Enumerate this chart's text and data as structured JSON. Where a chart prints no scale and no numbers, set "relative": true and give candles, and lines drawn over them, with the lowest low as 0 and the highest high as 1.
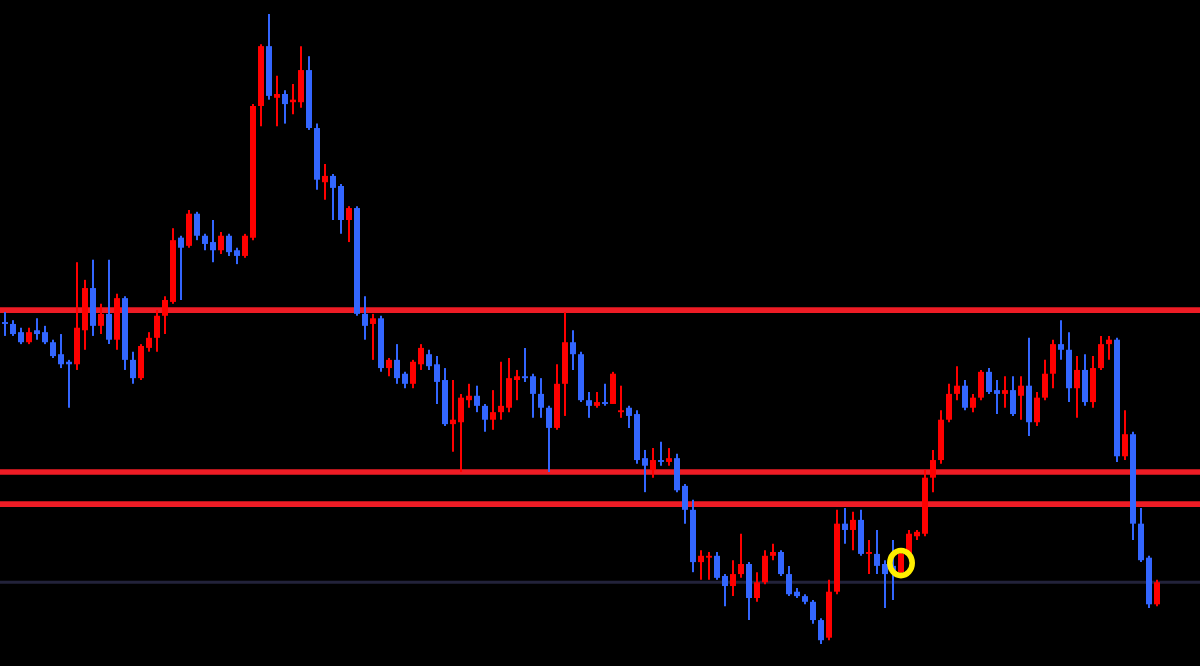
{
  "chart_data": {
    "type": "candlestick",
    "relative": true,
    "categories": [
      null,
      null,
      null,
      null,
      null,
      null,
      null,
      null,
      null,
      null,
      null,
      null,
      null,
      null,
      null,
      null,
      null,
      null,
      null,
      null,
      null,
      null,
      null,
      null,
      null,
      null,
      null,
      null,
      null,
      null,
      null,
      null,
      null,
      null,
      null,
      null,
      null,
      null,
      null,
      null,
      null,
      null,
      null,
      null,
      null,
      null,
      null,
      null,
      null,
      null,
      null,
      null,
      null,
      null,
      null,
      null,
      null,
      null,
      null,
      null,
      null,
      null,
      null,
      null,
      null,
      null,
      null,
      null,
      null,
      null,
      null,
      null,
      null,
      null,
      null,
      null,
      null,
      null,
      null,
      null,
      null,
      null,
      null,
      null,
      null,
      null,
      null,
      null,
      null,
      null,
      null,
      null,
      null,
      null,
      null,
      null,
      null,
      null,
      null,
      null,
      null,
      null,
      null,
      null,
      null,
      null,
      null,
      null,
      null,
      null,
      null,
      null,
      null,
      null,
      null,
      null,
      null,
      null,
      null,
      null,
      null,
      null,
      null,
      null,
      null,
      null,
      null,
      null,
      null,
      null,
      null,
      null,
      null,
      null,
      null,
      null,
      null,
      null,
      null,
      null,
      null,
      null,
      null,
      null,
      null
    ],
    "ohlc": [
      [
        0.511,
        0.527,
        0.489,
        0.508
      ],
      [
        0.508,
        0.514,
        0.489,
        0.492
      ],
      [
        0.495,
        0.502,
        0.476,
        0.479
      ],
      [
        0.479,
        0.502,
        0.476,
        0.495
      ],
      [
        0.498,
        0.517,
        0.483,
        0.492
      ],
      [
        0.495,
        0.505,
        0.476,
        0.479
      ],
      [
        0.479,
        0.483,
        0.454,
        0.457
      ],
      [
        0.46,
        0.492,
        0.438,
        0.444
      ],
      [
        0.448,
        0.451,
        0.375,
        0.444
      ],
      [
        0.444,
        0.606,
        0.435,
        0.502
      ],
      [
        0.498,
        0.578,
        0.467,
        0.565
      ],
      [
        0.565,
        0.61,
        0.489,
        0.505
      ],
      [
        0.505,
        0.54,
        0.492,
        0.524
      ],
      [
        0.524,
        0.61,
        0.476,
        0.483
      ],
      [
        0.483,
        0.556,
        0.467,
        0.549
      ],
      [
        0.549,
        0.552,
        0.435,
        0.451
      ],
      [
        0.451,
        0.464,
        0.413,
        0.422
      ],
      [
        0.422,
        0.476,
        0.419,
        0.473
      ],
      [
        0.47,
        0.495,
        0.464,
        0.486
      ],
      [
        0.486,
        0.53,
        0.464,
        0.521
      ],
      [
        0.521,
        0.552,
        0.492,
        0.546
      ],
      [
        0.543,
        0.66,
        0.54,
        0.641
      ],
      [
        0.645,
        0.648,
        0.546,
        0.629
      ],
      [
        0.632,
        0.689,
        0.629,
        0.683
      ],
      [
        0.683,
        0.686,
        0.641,
        0.648
      ],
      [
        0.648,
        0.651,
        0.625,
        0.635
      ],
      [
        0.638,
        0.673,
        0.606,
        0.625
      ],
      [
        0.625,
        0.654,
        0.619,
        0.648
      ],
      [
        0.648,
        0.651,
        0.616,
        0.622
      ],
      [
        0.625,
        0.629,
        0.603,
        0.616
      ],
      [
        0.616,
        0.651,
        0.613,
        0.648
      ],
      [
        0.645,
        0.857,
        0.641,
        0.854
      ],
      [
        0.854,
        0.952,
        0.822,
        0.949
      ],
      [
        0.949,
        1.0,
        0.864,
        0.87
      ],
      [
        0.867,
        0.902,
        0.822,
        0.873
      ],
      [
        0.873,
        0.879,
        0.826,
        0.857
      ],
      [
        0.86,
        0.889,
        0.841,
        0.864
      ],
      [
        0.86,
        0.949,
        0.851,
        0.911
      ],
      [
        0.911,
        0.933,
        0.816,
        0.819
      ],
      [
        0.819,
        0.826,
        0.721,
        0.737
      ],
      [
        0.733,
        0.762,
        0.705,
        0.743
      ],
      [
        0.743,
        0.746,
        0.673,
        0.724
      ],
      [
        0.727,
        0.73,
        0.651,
        0.673
      ],
      [
        0.673,
        0.695,
        0.638,
        0.692
      ],
      [
        0.692,
        0.695,
        0.521,
        0.524
      ],
      [
        0.524,
        0.552,
        0.483,
        0.505
      ],
      [
        0.508,
        0.524,
        0.451,
        0.517
      ],
      [
        0.517,
        0.521,
        0.432,
        0.438
      ],
      [
        0.438,
        0.454,
        0.425,
        0.451
      ],
      [
        0.451,
        0.476,
        0.413,
        0.422
      ],
      [
        0.429,
        0.432,
        0.406,
        0.413
      ],
      [
        0.413,
        0.451,
        0.406,
        0.448
      ],
      [
        0.444,
        0.476,
        0.435,
        0.47
      ],
      [
        0.46,
        0.467,
        0.435,
        0.441
      ],
      [
        0.444,
        0.457,
        0.381,
        0.416
      ],
      [
        0.419,
        0.438,
        0.346,
        0.349
      ],
      [
        0.349,
        0.419,
        0.305,
        0.356
      ],
      [
        0.352,
        0.397,
        0.273,
        0.391
      ],
      [
        0.387,
        0.413,
        0.375,
        0.394
      ],
      [
        0.394,
        0.41,
        0.368,
        0.378
      ],
      [
        0.378,
        0.381,
        0.337,
        0.356
      ],
      [
        0.356,
        0.403,
        0.34,
        0.368
      ],
      [
        0.368,
        0.448,
        0.356,
        0.378
      ],
      [
        0.375,
        0.454,
        0.368,
        0.422
      ],
      [
        0.419,
        0.435,
        0.387,
        0.425
      ],
      [
        0.425,
        0.47,
        0.416,
        0.422
      ],
      [
        0.425,
        0.429,
        0.359,
        0.397
      ],
      [
        0.397,
        0.422,
        0.359,
        0.375
      ],
      [
        0.375,
        0.378,
        0.273,
        0.343
      ],
      [
        0.343,
        0.444,
        0.34,
        0.413
      ],
      [
        0.413,
        0.527,
        0.362,
        0.479
      ],
      [
        0.479,
        0.498,
        0.435,
        0.46
      ],
      [
        0.46,
        0.464,
        0.384,
        0.387
      ],
      [
        0.387,
        0.4,
        0.359,
        0.378
      ],
      [
        0.378,
        0.4,
        0.375,
        0.384
      ],
      [
        0.384,
        0.413,
        0.378,
        0.381
      ],
      [
        0.381,
        0.432,
        0.381,
        0.429
      ],
      [
        0.368,
        0.41,
        0.359,
        0.371
      ],
      [
        0.375,
        0.378,
        0.343,
        0.362
      ],
      [
        0.365,
        0.371,
        0.286,
        0.292
      ],
      [
        0.295,
        0.308,
        0.241,
        0.283
      ],
      [
        0.276,
        0.311,
        0.264,
        0.292
      ],
      [
        0.292,
        0.321,
        0.283,
        0.289
      ],
      [
        0.289,
        0.311,
        0.283,
        0.295
      ],
      [
        0.295,
        0.302,
        0.241,
        0.244
      ],
      [
        0.251,
        0.254,
        0.191,
        0.213
      ],
      [
        0.213,
        0.229,
        0.114,
        0.13
      ],
      [
        0.13,
        0.149,
        0.102,
        0.14
      ],
      [
        0.137,
        0.146,
        0.102,
        0.14
      ],
      [
        0.14,
        0.146,
        0.102,
        0.105
      ],
      [
        0.108,
        0.111,
        0.06,
        0.092
      ],
      [
        0.092,
        0.133,
        0.076,
        0.111
      ],
      [
        0.111,
        0.175,
        0.105,
        0.127
      ],
      [
        0.127,
        0.13,
        0.038,
        0.073
      ],
      [
        0.073,
        0.114,
        0.067,
        0.098
      ],
      [
        0.098,
        0.149,
        0.095,
        0.14
      ],
      [
        0.14,
        0.159,
        0.133,
        0.146
      ],
      [
        0.146,
        0.149,
        0.108,
        0.111
      ],
      [
        0.111,
        0.124,
        0.076,
        0.079
      ],
      [
        0.083,
        0.089,
        0.073,
        0.076
      ],
      [
        0.076,
        0.079,
        0.063,
        0.067
      ],
      [
        0.067,
        0.07,
        0.032,
        0.038
      ],
      [
        0.038,
        0.041,
        0.0,
        0.006
      ],
      [
        0.01,
        0.102,
        0.006,
        0.083
      ],
      [
        0.083,
        0.213,
        0.079,
        0.191
      ],
      [
        0.191,
        0.216,
        0.159,
        0.181
      ],
      [
        0.181,
        0.21,
        0.149,
        0.197
      ],
      [
        0.197,
        0.213,
        0.14,
        0.143
      ],
      [
        0.143,
        0.165,
        0.111,
        0.146
      ],
      [
        0.143,
        0.181,
        0.111,
        0.124
      ],
      [
        0.127,
        0.133,
        0.057,
        0.111
      ],
      [
        0.124,
        0.165,
        0.07,
        0.114
      ],
      [
        0.114,
        0.149,
        0.105,
        0.143
      ],
      [
        0.143,
        0.181,
        0.14,
        0.175
      ],
      [
        0.171,
        0.181,
        0.165,
        0.178
      ],
      [
        0.175,
        0.276,
        0.171,
        0.264
      ],
      [
        0.264,
        0.308,
        0.241,
        0.292
      ],
      [
        0.292,
        0.371,
        0.286,
        0.356
      ],
      [
        0.356,
        0.413,
        0.352,
        0.397
      ],
      [
        0.397,
        0.441,
        0.387,
        0.41
      ],
      [
        0.41,
        0.419,
        0.371,
        0.375
      ],
      [
        0.375,
        0.397,
        0.368,
        0.391
      ],
      [
        0.391,
        0.435,
        0.387,
        0.432
      ],
      [
        0.432,
        0.438,
        0.397,
        0.4
      ],
      [
        0.403,
        0.419,
        0.365,
        0.397
      ],
      [
        0.397,
        0.425,
        0.375,
        0.403
      ],
      [
        0.403,
        0.425,
        0.362,
        0.365
      ],
      [
        0.394,
        0.425,
        0.356,
        0.41
      ],
      [
        0.41,
        0.486,
        0.33,
        0.352
      ],
      [
        0.352,
        0.4,
        0.346,
        0.391
      ],
      [
        0.391,
        0.451,
        0.387,
        0.429
      ],
      [
        0.429,
        0.483,
        0.406,
        0.476
      ],
      [
        0.476,
        0.514,
        0.451,
        0.467
      ],
      [
        0.467,
        0.495,
        0.384,
        0.406
      ],
      [
        0.406,
        0.457,
        0.359,
        0.435
      ],
      [
        0.435,
        0.46,
        0.378,
        0.384
      ],
      [
        0.384,
        0.457,
        0.375,
        0.438
      ],
      [
        0.438,
        0.489,
        0.435,
        0.476
      ],
      [
        0.476,
        0.489,
        0.451,
        0.483
      ],
      [
        0.483,
        0.486,
        0.289,
        0.298
      ],
      [
        0.298,
        0.371,
        0.292,
        0.333
      ],
      [
        0.333,
        0.337,
        0.165,
        0.191
      ],
      [
        0.191,
        0.216,
        0.13,
        0.133
      ],
      [
        0.137,
        0.14,
        0.057,
        0.063
      ],
      [
        0.063,
        0.102,
        0.06,
        0.098
      ]
    ],
    "colors": [
      "#3366ff",
      "#3366ff",
      "#3366ff",
      "#ff0000",
      "#3366ff",
      "#3366ff",
      "#3366ff",
      "#3366ff",
      "#3366ff",
      "#ff0000",
      "#ff0000",
      "#3366ff",
      "#ff0000",
      "#3366ff",
      "#ff0000",
      "#3366ff",
      "#3366ff",
      "#ff0000",
      "#ff0000",
      "#ff0000",
      "#ff0000",
      "#ff0000",
      "#3366ff",
      "#ff0000",
      "#3366ff",
      "#3366ff",
      "#3366ff",
      "#ff0000",
      "#3366ff",
      "#3366ff",
      "#ff0000",
      "#ff0000",
      "#ff0000",
      "#3366ff",
      "#ff0000",
      "#3366ff",
      "#ff0000",
      "#ff0000",
      "#3366ff",
      "#3366ff",
      "#ff0000",
      "#3366ff",
      "#3366ff",
      "#ff0000",
      "#3366ff",
      "#3366ff",
      "#ff0000",
      "#3366ff",
      "#ff0000",
      "#3366ff",
      "#3366ff",
      "#ff0000",
      "#ff0000",
      "#3366ff",
      "#3366ff",
      "#3366ff",
      "#ff0000",
      "#ff0000",
      "#ff0000",
      "#3366ff",
      "#3366ff",
      "#ff0000",
      "#ff0000",
      "#ff0000",
      "#ff0000",
      "#3366ff",
      "#3366ff",
      "#3366ff",
      "#3366ff",
      "#ff0000",
      "#ff0000",
      "#3366ff",
      "#3366ff",
      "#3366ff",
      "#ff0000",
      "#3366ff",
      "#ff0000",
      "#ff0000",
      "#3366ff",
      "#3366ff",
      "#3366ff",
      "#ff0000",
      "#3366ff",
      "#ff0000",
      "#3366ff",
      "#3366ff",
      "#3366ff",
      "#ff0000",
      "#ff0000",
      "#3366ff",
      "#3366ff",
      "#ff0000",
      "#ff0000",
      "#3366ff",
      "#ff0000",
      "#ff0000",
      "#ff0000",
      "#3366ff",
      "#3366ff",
      "#3366ff",
      "#3366ff",
      "#3366ff",
      "#3366ff",
      "#ff0000",
      "#ff0000",
      "#3366ff",
      "#ff0000",
      "#3366ff",
      "#ff0000",
      "#3366ff",
      "#3366ff",
      "#3366ff",
      "#ff0000",
      "#ff0000",
      "#ff0000",
      "#ff0000",
      "#ff0000",
      "#ff0000",
      "#ff0000",
      "#ff0000",
      "#3366ff",
      "#ff0000",
      "#ff0000",
      "#3366ff",
      "#3366ff",
      "#ff0000",
      "#3366ff",
      "#ff0000",
      "#3366ff",
      "#ff0000",
      "#ff0000",
      "#ff0000",
      "#3366ff",
      "#3366ff",
      "#ff0000",
      "#3366ff",
      "#ff0000",
      "#ff0000",
      "#ff0000",
      "#3366ff",
      "#ff0000",
      "#3366ff",
      "#3366ff",
      "#3366ff",
      "#ff0000"
    ],
    "ref_lines": [
      {
        "axis": "y",
        "value": 0.53,
        "color": "#ee1c25"
      },
      {
        "axis": "y",
        "value": 0.273,
        "color": "#ee1c25"
      },
      {
        "axis": "y",
        "value": 0.222,
        "color": "#ee1c25"
      },
      {
        "axis": "y",
        "value": 0.098,
        "color": "#22223a"
      }
    ]
  }
}
